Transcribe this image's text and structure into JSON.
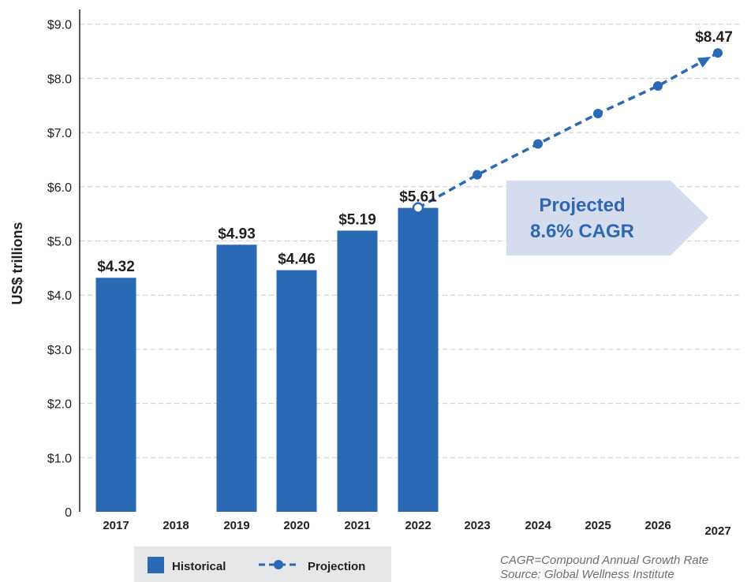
{
  "chart_data": {
    "type": "bar",
    "categories": [
      "2017",
      "2018",
      "2019",
      "2020",
      "2021",
      "2022",
      "2023",
      "2024",
      "2025",
      "2026",
      "2027"
    ],
    "series": [
      {
        "name": "Historical",
        "type": "bar",
        "values": [
          4.32,
          null,
          4.93,
          4.46,
          5.19,
          5.61,
          null,
          null,
          null,
          null,
          null
        ],
        "labels": [
          "$4.32",
          "",
          "$4.93",
          "$4.46",
          "$5.19",
          "$5.61",
          "",
          "",
          "",
          "",
          ""
        ]
      },
      {
        "name": "Projection",
        "type": "line",
        "values": [
          null,
          null,
          null,
          null,
          null,
          5.61,
          6.22,
          6.79,
          7.35,
          7.86,
          8.47
        ],
        "labels": [
          "",
          "",
          "",
          "",
          "",
          "",
          "",
          "",
          "",
          "",
          "$8.47"
        ]
      }
    ],
    "ylabel": "US$ trillions",
    "ylim": [
      0,
      9.5
    ],
    "yticks": [
      0,
      1,
      2,
      3,
      4,
      5,
      6,
      7,
      8,
      9
    ],
    "ytick_labels": [
      "0",
      "$1.0",
      "$2.0",
      "$3.0",
      "$4.0",
      "$5.0",
      "$6.0",
      "$7.0",
      "$8.0",
      "$9.0"
    ],
    "grid": true,
    "legend_position": "bottom-left",
    "annotation": [
      "Projected",
      "8.6% CAGR"
    ],
    "footnotes": [
      "CAGR=Compound Annual Growth Rate",
      "Source: Global Wellness Institute"
    ],
    "colors": {
      "bar": "#2a69b3",
      "line": "#2a69b3",
      "callout": "#d5dced",
      "callout_text": "#2f68b2",
      "grid": "#cccccc"
    }
  }
}
